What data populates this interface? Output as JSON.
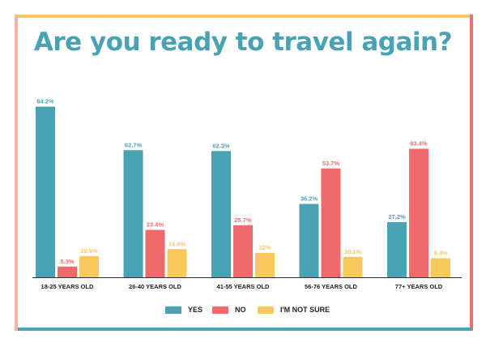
{
  "title": "Are you ready to travel again?",
  "colors": {
    "yes": "#4aa3b5",
    "no": "#ef6b6b",
    "not_sure": "#f9c95b",
    "title": "#4aa3b5"
  },
  "legend": [
    {
      "label": "YES",
      "color": "#4aa3b5"
    },
    {
      "label": "NO",
      "color": "#ef6b6b"
    },
    {
      "label": "I'M NOT SURE",
      "color": "#f9c95b"
    }
  ],
  "chart_data": {
    "type": "bar",
    "title": "Are you ready to travel again?",
    "categories": [
      "18-25 YEARS OLD",
      "26-40 YEARS OLD",
      "41-55 YEARS OLD",
      "56-76 YEARS OLD",
      "77+ YEARS OLD"
    ],
    "series": [
      {
        "name": "YES",
        "values": [
          84.2,
          62.7,
          62.3,
          36.2,
          27.2
        ],
        "labels": [
          "84.2%",
          "62.7%",
          "62.3%",
          "36.2%",
          "27.2%"
        ]
      },
      {
        "name": "NO",
        "values": [
          5.3,
          23.4,
          25.7,
          53.7,
          63.4
        ],
        "labels": [
          "5.3%",
          "23.4%",
          "25.7%",
          "53.7%",
          "63.4%"
        ]
      },
      {
        "name": "I'M NOT SURE",
        "values": [
          10.5,
          13.9,
          12,
          10.1,
          9.4
        ],
        "labels": [
          "10.5%",
          "13.9%",
          "12%",
          "10.1%",
          "9.4%"
        ]
      }
    ],
    "ylim": [
      0,
      100
    ],
    "grid": false,
    "legend_position": "bottom-center"
  }
}
